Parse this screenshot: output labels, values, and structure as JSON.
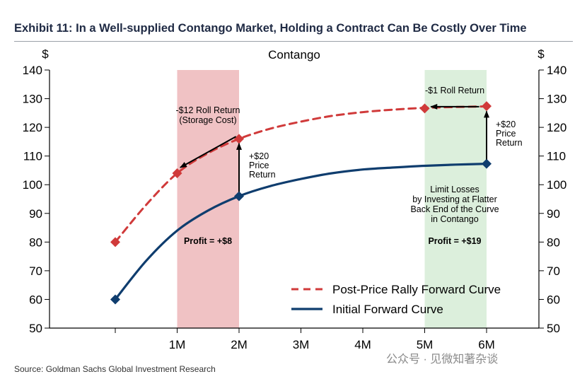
{
  "exhibit_title": "Exhibit 11: In a Well-supplied Contango Market, Holding a Contract Can Be Costly Over Time",
  "source": "Source: Goldman Sachs Global Investment Research",
  "watermark": "公众号 · 见微知著杂谈",
  "chart_data": {
    "type": "line",
    "title": "Contango",
    "ylabel_left": "$",
    "ylabel_right": "$",
    "xlabel": "",
    "ylim": [
      50,
      140
    ],
    "yticks": [
      50,
      60,
      70,
      80,
      90,
      100,
      110,
      120,
      130,
      140
    ],
    "x_categories": [
      "",
      "1M",
      "2M",
      "3M",
      "4M",
      "5M",
      "6M"
    ],
    "legend_position": "bottom-right",
    "grid": false,
    "colors": {
      "post_rally": "#d03a3a",
      "initial": "#0f3d6e",
      "red_band": "#f0c2c4",
      "green_band": "#dcefdc"
    },
    "series": [
      {
        "name": "Post-Price Rally Forward Curve",
        "style": "dashed",
        "x": [
          0,
          0.5,
          1,
          1.5,
          2,
          2.5,
          3,
          3.5,
          4,
          4.5,
          5,
          5.5,
          6
        ],
        "y": [
          80,
          93,
          104,
          111,
          116,
          119.5,
          122,
          124,
          125.3,
          126.2,
          126.8,
          127.1,
          127.3
        ],
        "markers_x": [
          0,
          1,
          2,
          5,
          6
        ],
        "markers_y": [
          80,
          104,
          116,
          126.6,
          127.4
        ]
      },
      {
        "name": "Initial Forward Curve",
        "style": "solid",
        "x": [
          0,
          0.5,
          1,
          1.5,
          2,
          2.5,
          3,
          3.5,
          4,
          4.5,
          5,
          5.5,
          6
        ],
        "y": [
          60,
          73.5,
          84,
          91,
          96,
          99.5,
          102,
          104,
          105.3,
          106,
          106.6,
          107,
          107.3
        ],
        "markers_x": [
          0,
          2,
          6
        ],
        "markers_y": [
          60,
          96,
          107.3
        ]
      }
    ],
    "bands": [
      {
        "x_from": 1,
        "x_to": 2,
        "color": "red_band"
      },
      {
        "x_from": 5,
        "x_to": 6,
        "color": "green_band"
      }
    ],
    "annotations": {
      "roll_left": [
        "-$12 Roll Return",
        "(Storage Cost)"
      ],
      "price_left": [
        "+$20",
        "Price",
        "Return"
      ],
      "roll_right": "-$1 Roll Return",
      "price_right": [
        "+$20",
        "Price",
        "Return"
      ],
      "limit_losses": [
        "Limit Losses",
        "by Investing at Flatter",
        "Back End of the Curve",
        "in Contango"
      ],
      "profit_left": "Profit = +$8",
      "profit_right": "Profit = +$19"
    }
  }
}
